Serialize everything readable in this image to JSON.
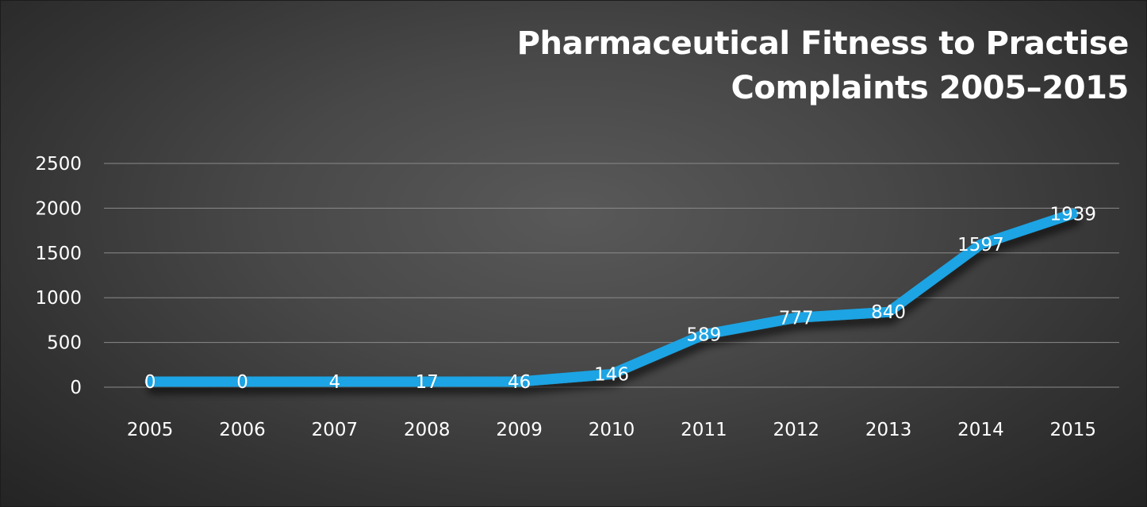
{
  "chart_data": {
    "type": "line",
    "title_lines": [
      "Pharmaceutical Fitness to Practise",
      "Complaints 2005–2015"
    ],
    "xlabel": "",
    "ylabel": "",
    "categories": [
      "2005",
      "2006",
      "2007",
      "2008",
      "2009",
      "2010",
      "2011",
      "2012",
      "2013",
      "2014",
      "2015"
    ],
    "series": [
      {
        "values": [
          0,
          0,
          4,
          17,
          46,
          146,
          589,
          777,
          840,
          1597,
          1939
        ],
        "color": "#1ea4e4"
      }
    ],
    "data_labels": [
      "0",
      "0",
      "4",
      "17",
      "46",
      "146",
      "589",
      "777",
      "840",
      "1597",
      "1939"
    ],
    "ylim": [
      0,
      2500
    ],
    "yticks": [
      0,
      500,
      1000,
      1500,
      2000,
      2500
    ],
    "grid": true,
    "legend": "none"
  }
}
